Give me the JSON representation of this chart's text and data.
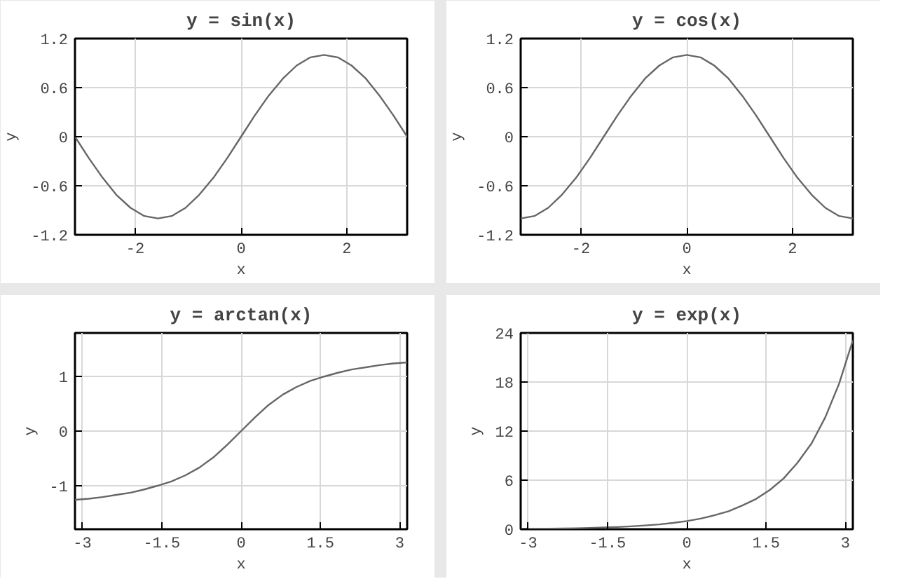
{
  "chart_data": [
    {
      "type": "line",
      "title": "y = sin(x)",
      "xlabel": "x",
      "ylabel": "y",
      "x": [
        -3.14,
        -2.88,
        -2.62,
        -2.36,
        -2.09,
        -1.83,
        -1.57,
        -1.31,
        -1.05,
        -0.79,
        -0.52,
        -0.26,
        0,
        0.26,
        0.52,
        0.79,
        1.05,
        1.31,
        1.57,
        1.83,
        2.09,
        2.36,
        2.62,
        2.88,
        3.14
      ],
      "series": [
        {
          "color": "#666666",
          "values": [
            0,
            -0.26,
            -0.5,
            -0.71,
            -0.87,
            -0.97,
            -1,
            -0.97,
            -0.87,
            -0.71,
            -0.5,
            -0.26,
            0,
            0.26,
            0.5,
            0.71,
            0.87,
            0.97,
            1,
            0.97,
            0.87,
            0.71,
            0.5,
            0.26,
            0
          ]
        }
      ],
      "xlim": [
        -3.14,
        3.14
      ],
      "ylim": [
        -1.2,
        1.2
      ],
      "xticks": [
        -2,
        0,
        2
      ],
      "yticks": [
        -1.2,
        -0.6,
        0,
        0.6,
        1.2
      ],
      "grid": true
    },
    {
      "type": "line",
      "title": "y = cos(x)",
      "xlabel": "x",
      "ylabel": "y",
      "x": [
        -3.14,
        -2.88,
        -2.62,
        -2.36,
        -2.09,
        -1.83,
        -1.57,
        -1.31,
        -1.05,
        -0.79,
        -0.52,
        -0.26,
        0,
        0.26,
        0.52,
        0.79,
        1.05,
        1.31,
        1.57,
        1.83,
        2.09,
        2.36,
        2.62,
        2.88,
        3.14
      ],
      "series": [
        {
          "color": "#666666",
          "values": [
            -1,
            -0.97,
            -0.87,
            -0.71,
            -0.5,
            -0.26,
            0,
            0.26,
            0.5,
            0.71,
            0.87,
            0.97,
            1,
            0.97,
            0.87,
            0.71,
            0.5,
            0.26,
            0,
            -0.26,
            -0.5,
            -0.71,
            -0.87,
            -0.97,
            -1
          ]
        }
      ],
      "xlim": [
        -3.14,
        3.14
      ],
      "ylim": [
        -1.2,
        1.2
      ],
      "xticks": [
        -2,
        0,
        2
      ],
      "yticks": [
        -1.2,
        -0.6,
        0,
        0.6,
        1.2
      ],
      "grid": true
    },
    {
      "type": "line",
      "title": "y = arctan(x)",
      "xlabel": "x",
      "ylabel": "y",
      "x": [
        -3.14,
        -2.88,
        -2.62,
        -2.36,
        -2.09,
        -1.83,
        -1.57,
        -1.31,
        -1.05,
        -0.79,
        -0.52,
        -0.26,
        0,
        0.26,
        0.52,
        0.79,
        1.05,
        1.31,
        1.57,
        1.83,
        2.09,
        2.36,
        2.62,
        2.88,
        3.14
      ],
      "series": [
        {
          "color": "#666666",
          "values": [
            -1.26,
            -1.24,
            -1.21,
            -1.17,
            -1.13,
            -1.07,
            -1.0,
            -0.92,
            -0.81,
            -0.67,
            -0.48,
            -0.25,
            0,
            0.25,
            0.48,
            0.67,
            0.81,
            0.92,
            1.0,
            1.07,
            1.13,
            1.17,
            1.21,
            1.24,
            1.26
          ]
        }
      ],
      "xlim": [
        -3.14,
        3.14
      ],
      "ylim": [
        -1.8,
        1.8
      ],
      "xticks": [
        -3,
        -1.5,
        0,
        1.5,
        3
      ],
      "yticks": [
        -1,
        0,
        1
      ],
      "grid": true
    },
    {
      "type": "line",
      "title": "y = exp(x)",
      "xlabel": "x",
      "ylabel": "y",
      "x": [
        -3.14,
        -2.88,
        -2.62,
        -2.36,
        -2.09,
        -1.83,
        -1.57,
        -1.31,
        -1.05,
        -0.79,
        -0.52,
        -0.26,
        0,
        0.26,
        0.52,
        0.79,
        1.05,
        1.31,
        1.57,
        1.83,
        2.09,
        2.36,
        2.62,
        2.88,
        3.14
      ],
      "series": [
        {
          "color": "#666666",
          "values": [
            0.04,
            0.06,
            0.07,
            0.1,
            0.12,
            0.16,
            0.21,
            0.27,
            0.35,
            0.46,
            0.59,
            0.77,
            1,
            1.3,
            1.7,
            2.2,
            2.9,
            3.7,
            4.8,
            6.2,
            8.1,
            10.5,
            13.7,
            17.8,
            23.1
          ]
        }
      ],
      "xlim": [
        -3.14,
        3.14
      ],
      "ylim": [
        0,
        24
      ],
      "xticks": [
        -3,
        -1.5,
        0,
        1.5,
        3
      ],
      "yticks": [
        0,
        6,
        12,
        18,
        24
      ],
      "grid": true
    }
  ]
}
